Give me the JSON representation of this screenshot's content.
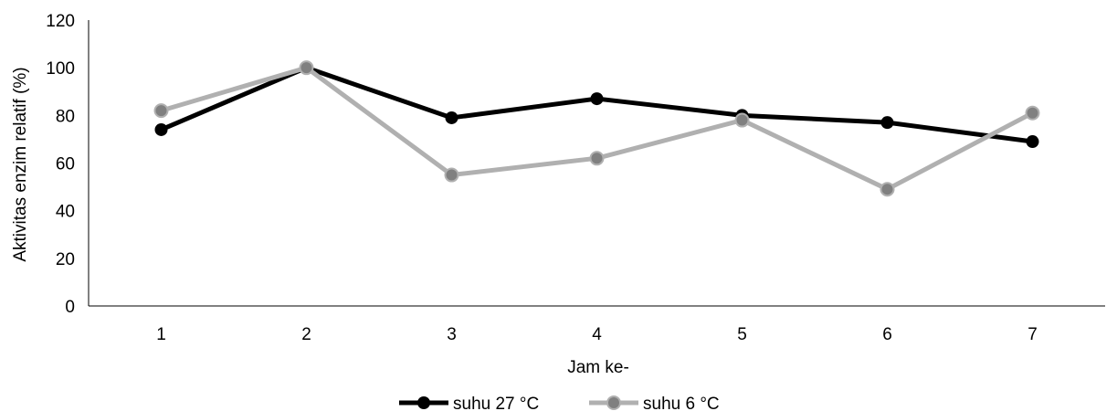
{
  "chart_data": {
    "type": "line",
    "title": "",
    "xlabel": "Jam ke-",
    "ylabel": "Aktivitas enzim relatif (%)",
    "categories": [
      "1",
      "2",
      "3",
      "4",
      "5",
      "6",
      "7"
    ],
    "yticks": [
      "0",
      "20",
      "40",
      "60",
      "80",
      "100",
      "120"
    ],
    "ylim": [
      0,
      120
    ],
    "grid": false,
    "legend_position": "bottom",
    "series": [
      {
        "name": "suhu 27 °C",
        "values": [
          74,
          100,
          79,
          87,
          80,
          77,
          69
        ],
        "color": "#000000",
        "marker_color": "#000000"
      },
      {
        "name": "suhu 6 °C",
        "values": [
          82,
          100,
          55,
          62,
          78,
          49,
          81
        ],
        "color": "#b0b0b0",
        "marker_color": "#808080"
      }
    ]
  }
}
